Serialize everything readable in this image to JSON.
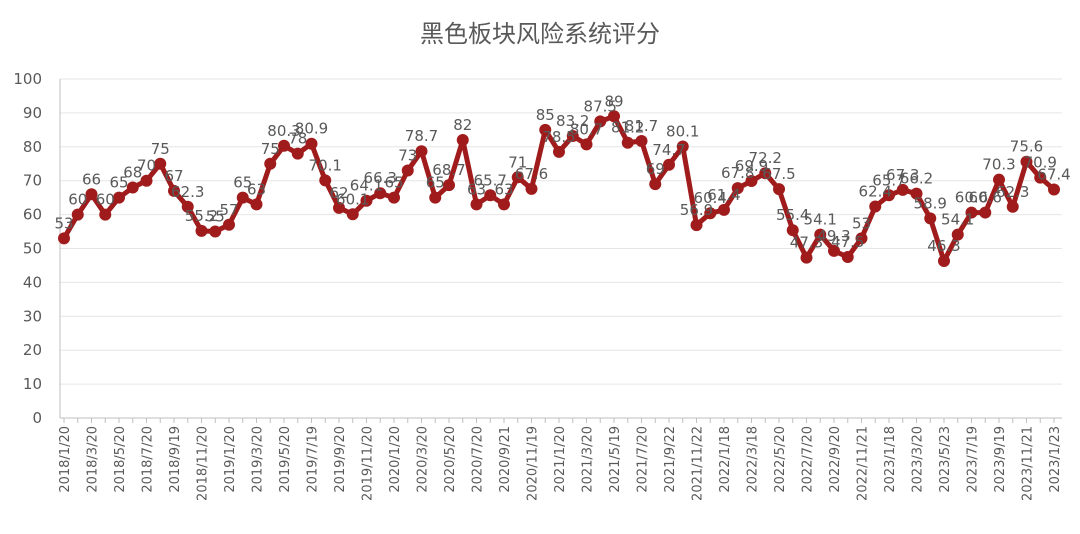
{
  "chart_data": {
    "type": "line",
    "title": "黑色板块风险系统评分",
    "xlabel": "",
    "ylabel": "",
    "ylim": [
      0,
      100
    ],
    "yticks": [
      0,
      10,
      20,
      30,
      40,
      50,
      60,
      70,
      80,
      90,
      100
    ],
    "grid": true,
    "legend": "none",
    "color": "#a01c1c",
    "x_tick_labels": [
      "2018/1/20",
      "2018/3/20",
      "2018/5/20",
      "2018/7/20",
      "2018/9/19",
      "2018/11/20",
      "2019/1/20",
      "2019/3/20",
      "2019/5/20",
      "2019/7/19",
      "2019/9/20",
      "2019/11/20",
      "2020/1/20",
      "2020/3/20",
      "2020/5/20",
      "2020/7/20",
      "2020/9/21",
      "2020/11/19",
      "2021/1/20",
      "2021/3/20",
      "2021/5/19",
      "2021/7/20",
      "2021/9/22",
      "2021/11/22",
      "2022/1/18",
      "2022/3/18",
      "2022/5/20",
      "2022/7/20",
      "2022/9/20",
      "2022/11/21",
      "2023/1/18",
      "2023/3/20",
      "2023/5/23",
      "2023/7/19",
      "2023/9/19",
      "2023/11/21",
      "2023/1/23"
    ],
    "series": [
      {
        "values": [
          53,
          60,
          66,
          60,
          65,
          68,
          70,
          75,
          67,
          62.3,
          55.2,
          55,
          57,
          65,
          63,
          75,
          80.3,
          78,
          80.9,
          70.1,
          62,
          60.1,
          64.1,
          66.3,
          65,
          73,
          78.7,
          65,
          68.7,
          82,
          63,
          65.7,
          63,
          71,
          67.6,
          85,
          78.5,
          83.2,
          80.7,
          87.5,
          89,
          81.2,
          81.7,
          69,
          74.7,
          80.1,
          56.9,
          60.4,
          61.4,
          67.8,
          69.9,
          72.2,
          67.5,
          55.4,
          47.3,
          54.1,
          49.3,
          47.5,
          53,
          62.4,
          65.7,
          67.3,
          66.2,
          58.9,
          46.3,
          54.1,
          60.6,
          60.6,
          70.3,
          62.3,
          75.6,
          70.9,
          67.4
        ],
        "labels": [
          "53",
          "60",
          "66",
          "60",
          "65",
          "68",
          "70",
          "75",
          "67",
          "62.3",
          "55.2",
          "55",
          "57",
          "65",
          "63",
          "75",
          "80.3",
          "78",
          "80.9",
          "70.1",
          "62",
          "60.1",
          "64.1",
          "66.3",
          "65",
          "73",
          "78.7",
          "65",
          "68.7",
          "82",
          "63",
          "65.7",
          "63",
          "71",
          "67.6",
          "85",
          "78.5",
          "83.2",
          "80.7",
          "87.5",
          "89",
          "81.2",
          "81.7",
          "69",
          "74.7",
          "80.1",
          "56.9",
          "60.4",
          "61.4",
          "67.8",
          "69.9",
          "72.2",
          "67.5",
          "55.4",
          "47.3",
          "54.1",
          "49.3",
          "47.5",
          "53",
          "62.4",
          "65.7",
          "67.3",
          "66.2",
          "58.9",
          "46.3",
          "54.1",
          "60.6",
          "60.6",
          "70.3",
          "62.3",
          "75.6",
          "70.9",
          "67.4"
        ]
      }
    ]
  }
}
